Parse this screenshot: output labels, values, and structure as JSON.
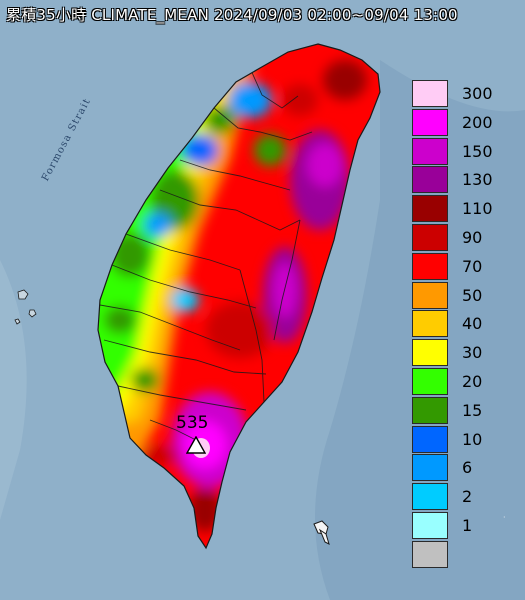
{
  "map": {
    "title": "累積35小時 CLIMATE_MEAN 2024/09/03 02:00~09/04 13:00",
    "strait_label": "Formosa Strait",
    "peak_value": "535",
    "colors": {
      "sea": "#8fb0c9",
      "sea_deep": "#6f96b3",
      "boundary": "#1a1a1a"
    }
  },
  "legend": {
    "items": [
      {
        "label": "300",
        "color": "#ffccf5"
      },
      {
        "label": "200",
        "color": "#ff00ff"
      },
      {
        "label": "150",
        "color": "#cc00cc"
      },
      {
        "label": "130",
        "color": "#990099"
      },
      {
        "label": "110",
        "color": "#990000"
      },
      {
        "label": "90",
        "color": "#cc0000"
      },
      {
        "label": "70",
        "color": "#ff0000"
      },
      {
        "label": "50",
        "color": "#ff9900"
      },
      {
        "label": "40",
        "color": "#ffcc00"
      },
      {
        "label": "30",
        "color": "#ffff00"
      },
      {
        "label": "20",
        "color": "#33ff00"
      },
      {
        "label": "15",
        "color": "#339900"
      },
      {
        "label": "10",
        "color": "#0066ff"
      },
      {
        "label": "6",
        "color": "#0099ff"
      },
      {
        "label": "2",
        "color": "#00ccff"
      },
      {
        "label": "1",
        "color": "#99ffff"
      },
      {
        "label": "",
        "color": "#c0c0c0"
      }
    ]
  }
}
